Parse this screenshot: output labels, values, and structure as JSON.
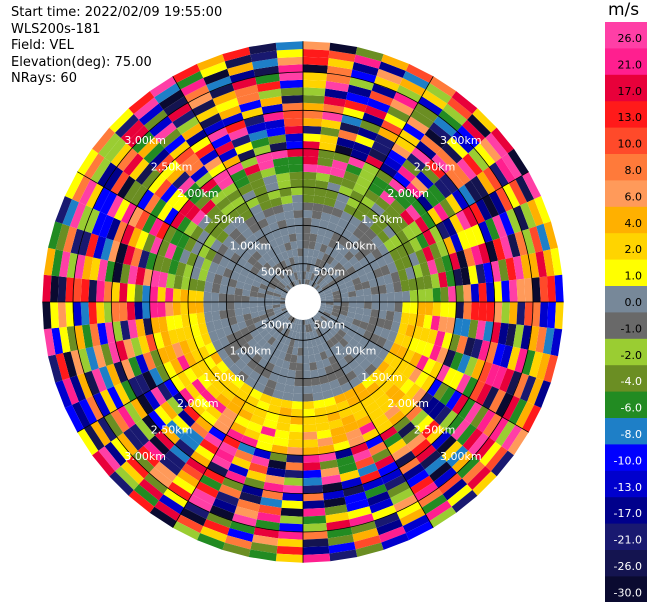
{
  "info": {
    "start_time": "Start time: 2022/02/09 19:55:00",
    "site": "WLS200s-181",
    "field": "Field: VEL",
    "elevation": "Elevation(deg): 75.00",
    "nrays": "NRays: 60"
  },
  "chart_data": {
    "type": "ppi-polar",
    "field": "VEL",
    "unit": "m/s",
    "range_rings_m": [
      500,
      1000,
      1500,
      2000,
      2500,
      3000
    ],
    "ring_labels": [
      "500m",
      "1.00km",
      "1.50km",
      "2.00km",
      "2.50km",
      "3.00km"
    ],
    "max_range_m": 3400,
    "gate_spacing_m": 100,
    "nrays": 60,
    "colorbar": {
      "tick_labels": [
        "26.0",
        "21.0",
        "17.0",
        "13.0",
        "10.0",
        "8.0",
        "6.0",
        "4.0",
        "2.0",
        "1.0",
        "0.0",
        "-1.0",
        "-2.0",
        "-4.0",
        "-6.0",
        "-8.0",
        "-10.0",
        "-13.0",
        "-17.0",
        "-21.0",
        "-26.0",
        "-30.0"
      ],
      "colors": [
        "#ff3fa6",
        "#ff1f8f",
        "#e8003a",
        "#ff1a1a",
        "#ff4a2a",
        "#ff7a3a",
        "#ff9a5a",
        "#ffb000",
        "#ffd400",
        "#ffff00",
        "#778899",
        "#696969",
        "#9acd32",
        "#6b8e23",
        "#228b22",
        "#1e7fc7",
        "#0000ff",
        "#0000cd",
        "#00008b",
        "#191970",
        "#141450",
        "#0a0a30"
      ]
    }
  }
}
